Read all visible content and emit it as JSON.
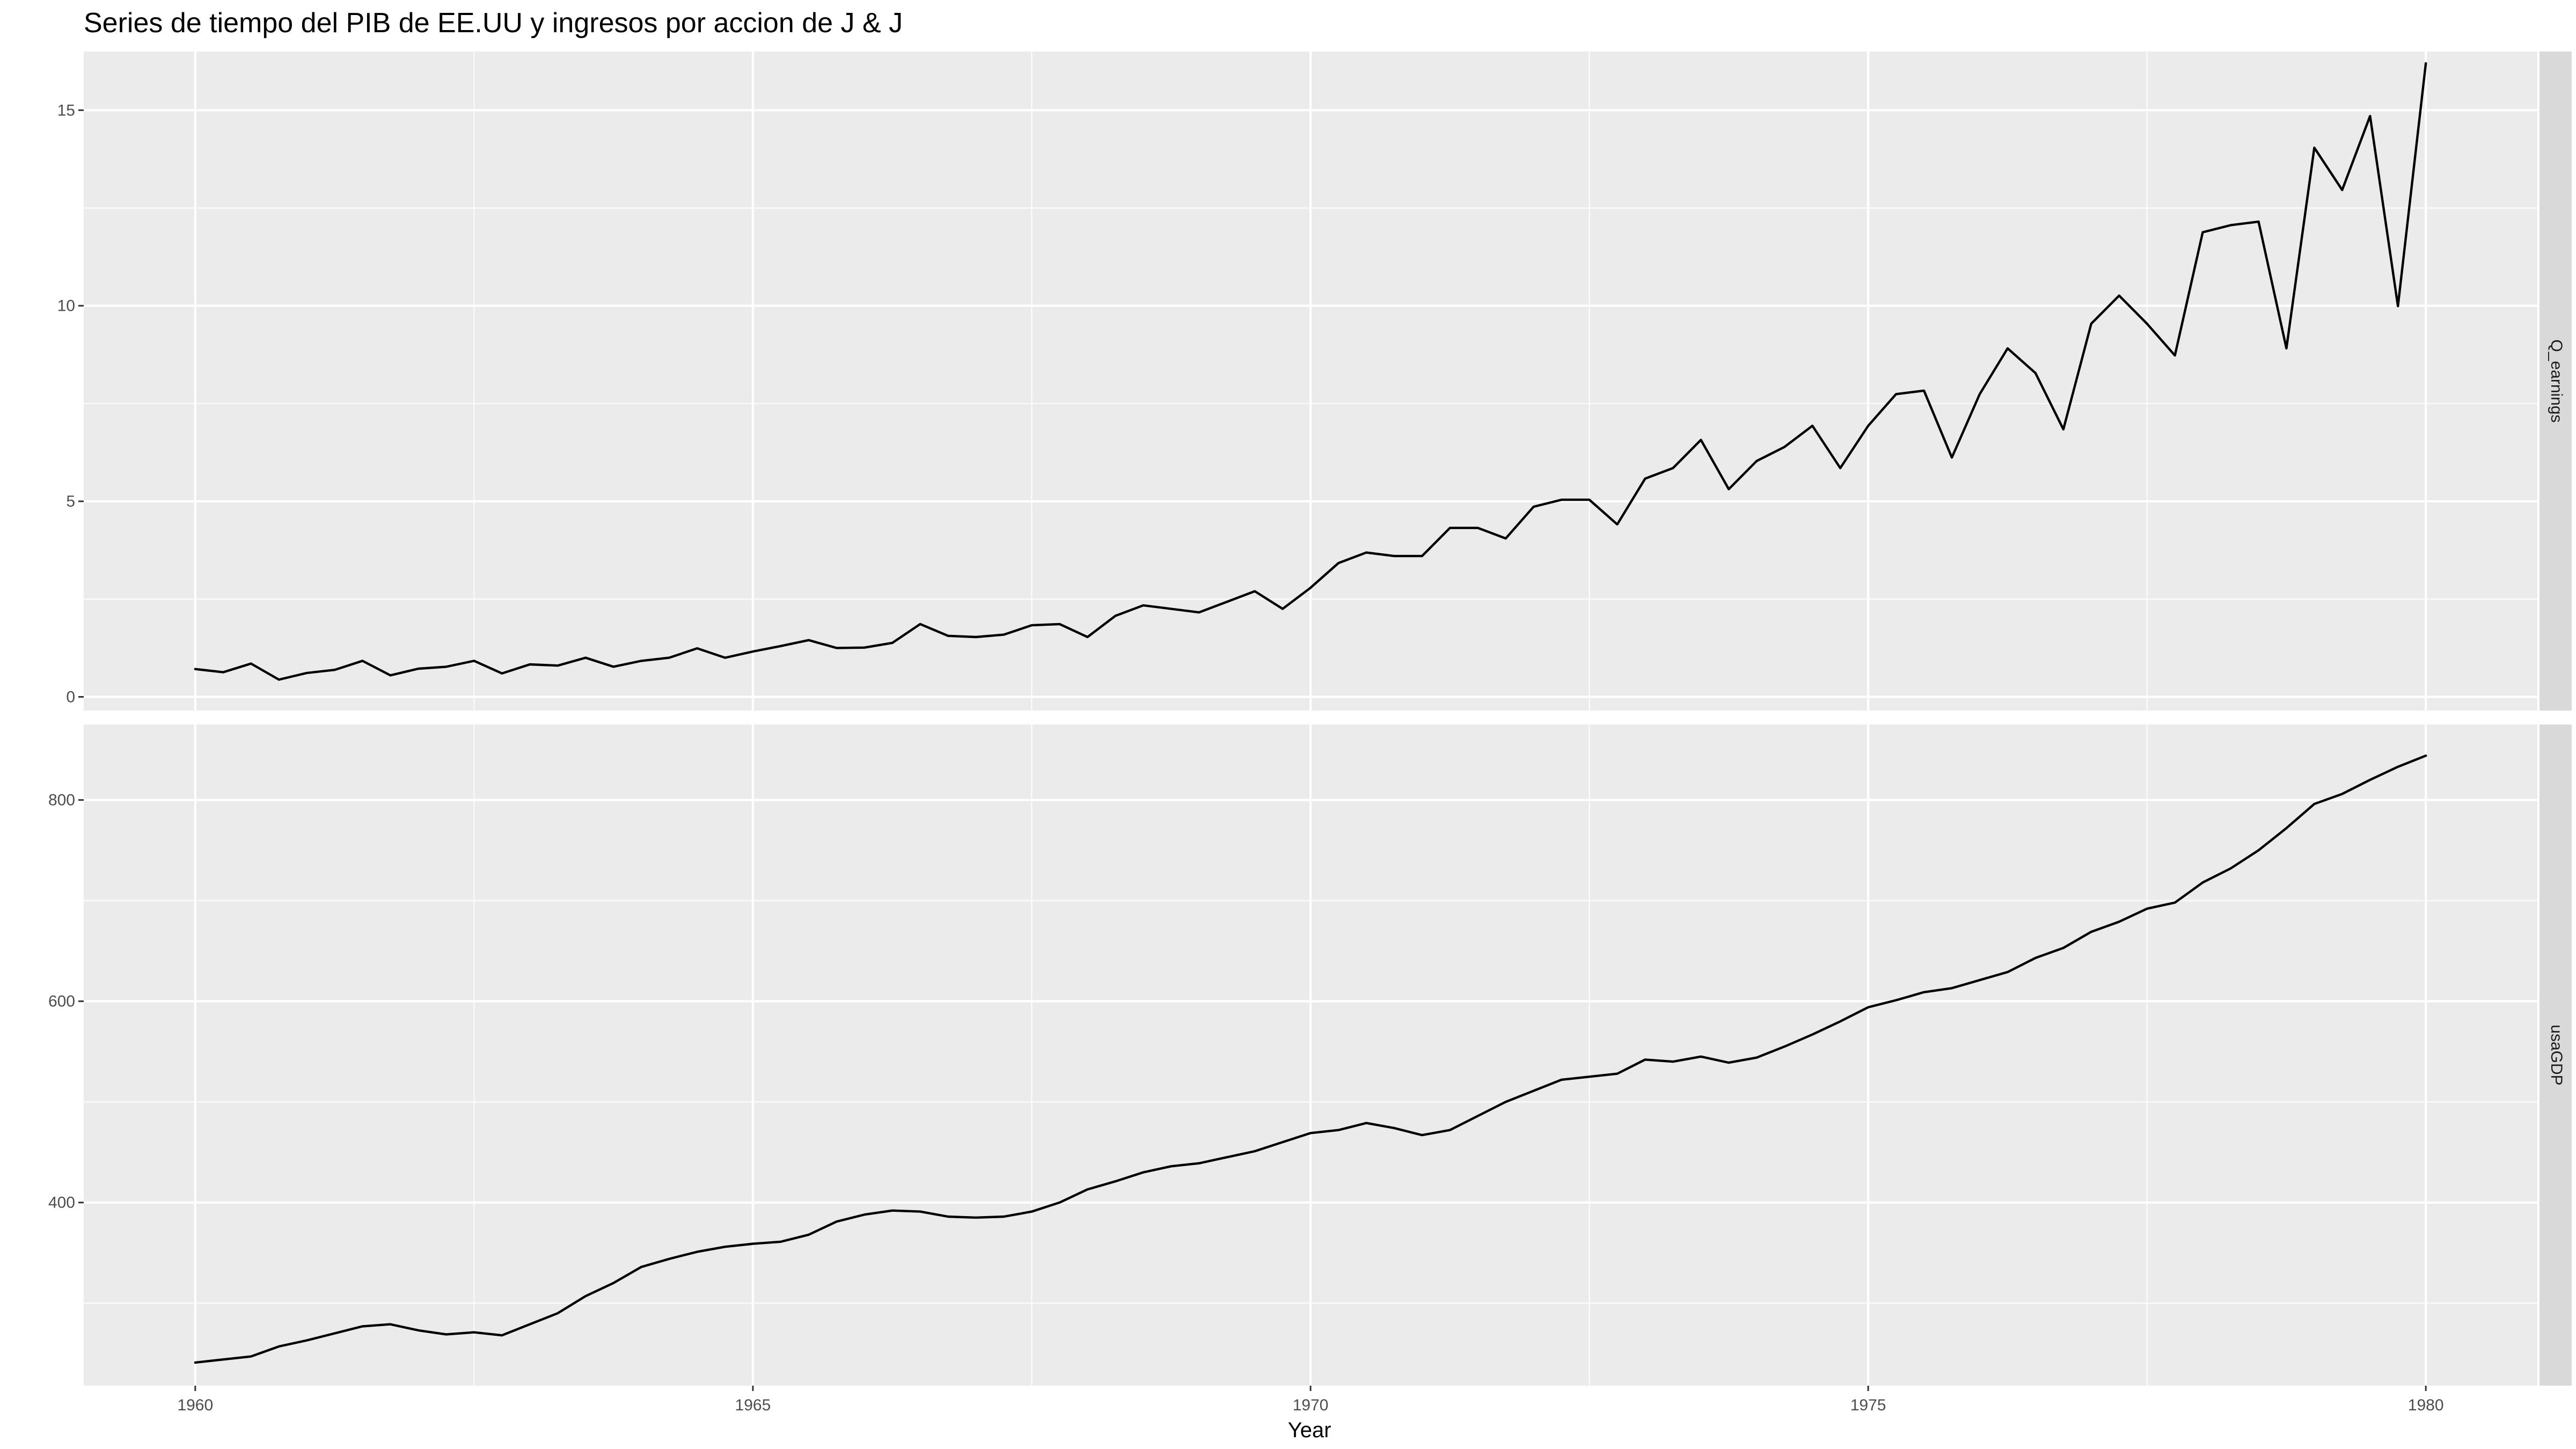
{
  "chart_data": {
    "type": "line",
    "title": "Series de tiempo del PIB de EE.UU y ingresos por accion de J & J",
    "xlabel": "Year",
    "x_ticks": [
      1960,
      1965,
      1970,
      1975,
      1980
    ],
    "xlim": [
      1959.0,
      1981.0
    ],
    "x_start": 1960.0,
    "x_step": 0.25,
    "grid": true,
    "facets": [
      {
        "strip": "Q_earnings",
        "ylim": [
          -0.35,
          16.5
        ],
        "y_ticks": [
          0,
          5,
          10,
          15
        ],
        "values": [
          0.71,
          0.63,
          0.85,
          0.44,
          0.61,
          0.69,
          0.92,
          0.55,
          0.72,
          0.77,
          0.92,
          0.6,
          0.83,
          0.8,
          1.0,
          0.77,
          0.92,
          1.0,
          1.24,
          1.0,
          1.16,
          1.3,
          1.45,
          1.25,
          1.26,
          1.38,
          1.86,
          1.56,
          1.53,
          1.59,
          1.83,
          1.86,
          1.53,
          2.07,
          2.34,
          2.25,
          2.16,
          2.43,
          2.7,
          2.25,
          2.79,
          3.42,
          3.69,
          3.6,
          3.6,
          4.32,
          4.32,
          4.05,
          4.86,
          5.04,
          5.04,
          4.41,
          5.58,
          5.85,
          6.57,
          5.31,
          6.03,
          6.39,
          6.93,
          5.85,
          6.93,
          7.74,
          7.83,
          6.12,
          7.74,
          8.91,
          8.28,
          6.84,
          9.54,
          10.26,
          9.54,
          8.73,
          11.88,
          12.06,
          12.15,
          8.91,
          14.04,
          12.96,
          14.85,
          9.99,
          16.2
        ]
      },
      {
        "strip": "usaGDP",
        "ylim": [
          218,
          875
        ],
        "y_ticks": [
          400,
          600,
          800
        ],
        "values": [
          241,
          244,
          247,
          257,
          263,
          270,
          277,
          279,
          273,
          269,
          271,
          268,
          279,
          290,
          307,
          320,
          336,
          344,
          351,
          356,
          359,
          361,
          368,
          381,
          388,
          392,
          391,
          386,
          385,
          386,
          391,
          400,
          413,
          421,
          430,
          436,
          439,
          445,
          451,
          460,
          469,
          472,
          479,
          474,
          467,
          472,
          486,
          500,
          511,
          522,
          525,
          528,
          542,
          540,
          545,
          539,
          544,
          555,
          567,
          580,
          594,
          601,
          609,
          613,
          621,
          629,
          643,
          653,
          669,
          679,
          692,
          698,
          718,
          732,
          750,
          772,
          796,
          806,
          820,
          833,
          844
        ]
      }
    ]
  }
}
